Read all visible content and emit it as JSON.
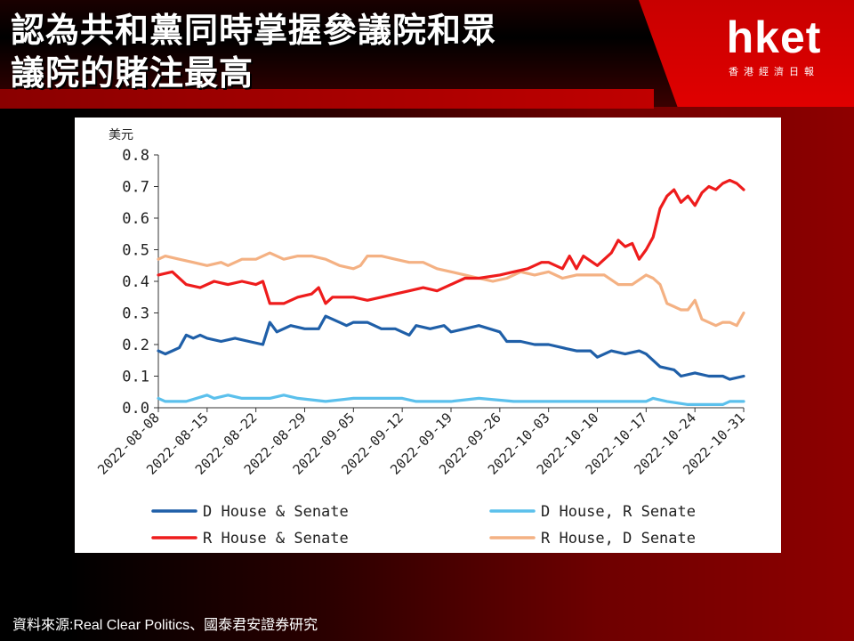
{
  "headline": {
    "line1": "認為共和黨同時掌握參議院和眾",
    "line2": "議院的賭注最高"
  },
  "brand": {
    "logo": "hket",
    "subtitle": "香港經濟日報"
  },
  "source": "資料來源:Real Clear Politics、國泰君安證券研究",
  "colors": {
    "d_both": "#1f5fa8",
    "d_house_r_senate": "#5bc0ec",
    "r_both": "#ee1c1c",
    "r_house_d_senate": "#f4b183",
    "header_red": "#e00000"
  },
  "chart_data": {
    "type": "line",
    "unit_label": "美元",
    "ylim": [
      0.0,
      0.8
    ],
    "yticks": [
      "0.0",
      "0.1",
      "0.2",
      "0.3",
      "0.4",
      "0.5",
      "0.6",
      "0.7",
      "0.8"
    ],
    "xtick_labels": [
      "2022-08-08",
      "2022-08-15",
      "2022-08-22",
      "2022-08-29",
      "2022-09-05",
      "2022-09-12",
      "2022-09-19",
      "2022-09-26",
      "2022-10-03",
      "2022-10-10",
      "2022-10-17",
      "2022-10-24",
      "2022-10-31"
    ],
    "grid": false,
    "legend_position": "bottom",
    "series": [
      {
        "name": "D House & Senate",
        "color": "#1f5fa8",
        "values": [
          [
            "2022-08-08",
            0.18
          ],
          [
            "2022-08-09",
            0.17
          ],
          [
            "2022-08-10",
            0.18
          ],
          [
            "2022-08-11",
            0.19
          ],
          [
            "2022-08-12",
            0.23
          ],
          [
            "2022-08-13",
            0.22
          ],
          [
            "2022-08-14",
            0.23
          ],
          [
            "2022-08-15",
            0.22
          ],
          [
            "2022-08-17",
            0.21
          ],
          [
            "2022-08-19",
            0.22
          ],
          [
            "2022-08-21",
            0.21
          ],
          [
            "2022-08-23",
            0.2
          ],
          [
            "2022-08-24",
            0.27
          ],
          [
            "2022-08-25",
            0.24
          ],
          [
            "2022-08-27",
            0.26
          ],
          [
            "2022-08-29",
            0.25
          ],
          [
            "2022-08-31",
            0.25
          ],
          [
            "2022-09-01",
            0.29
          ],
          [
            "2022-09-03",
            0.27
          ],
          [
            "2022-09-04",
            0.26
          ],
          [
            "2022-09-05",
            0.27
          ],
          [
            "2022-09-07",
            0.27
          ],
          [
            "2022-09-09",
            0.25
          ],
          [
            "2022-09-11",
            0.25
          ],
          [
            "2022-09-13",
            0.23
          ],
          [
            "2022-09-14",
            0.26
          ],
          [
            "2022-09-16",
            0.25
          ],
          [
            "2022-09-18",
            0.26
          ],
          [
            "2022-09-19",
            0.24
          ],
          [
            "2022-09-21",
            0.25
          ],
          [
            "2022-09-23",
            0.26
          ],
          [
            "2022-09-26",
            0.24
          ],
          [
            "2022-09-27",
            0.21
          ],
          [
            "2022-09-29",
            0.21
          ],
          [
            "2022-10-01",
            0.2
          ],
          [
            "2022-10-03",
            0.2
          ],
          [
            "2022-10-05",
            0.19
          ],
          [
            "2022-10-07",
            0.18
          ],
          [
            "2022-10-09",
            0.18
          ],
          [
            "2022-10-10",
            0.16
          ],
          [
            "2022-10-12",
            0.18
          ],
          [
            "2022-10-14",
            0.17
          ],
          [
            "2022-10-16",
            0.18
          ],
          [
            "2022-10-17",
            0.17
          ],
          [
            "2022-10-19",
            0.13
          ],
          [
            "2022-10-21",
            0.12
          ],
          [
            "2022-10-22",
            0.1
          ],
          [
            "2022-10-24",
            0.11
          ],
          [
            "2022-10-26",
            0.1
          ],
          [
            "2022-10-28",
            0.1
          ],
          [
            "2022-10-29",
            0.09
          ],
          [
            "2022-10-31",
            0.1
          ]
        ]
      },
      {
        "name": "D House, R Senate",
        "color": "#5bc0ec",
        "values": [
          [
            "2022-08-08",
            0.03
          ],
          [
            "2022-08-09",
            0.02
          ],
          [
            "2022-08-12",
            0.02
          ],
          [
            "2022-08-15",
            0.04
          ],
          [
            "2022-08-16",
            0.03
          ],
          [
            "2022-08-18",
            0.04
          ],
          [
            "2022-08-20",
            0.03
          ],
          [
            "2022-08-24",
            0.03
          ],
          [
            "2022-08-26",
            0.04
          ],
          [
            "2022-08-28",
            0.03
          ],
          [
            "2022-09-01",
            0.02
          ],
          [
            "2022-09-05",
            0.03
          ],
          [
            "2022-09-12",
            0.03
          ],
          [
            "2022-09-14",
            0.02
          ],
          [
            "2022-09-19",
            0.02
          ],
          [
            "2022-09-23",
            0.03
          ],
          [
            "2022-09-28",
            0.02
          ],
          [
            "2022-10-03",
            0.02
          ],
          [
            "2022-10-10",
            0.02
          ],
          [
            "2022-10-17",
            0.02
          ],
          [
            "2022-10-18",
            0.03
          ],
          [
            "2022-10-20",
            0.02
          ],
          [
            "2022-10-23",
            0.01
          ],
          [
            "2022-10-28",
            0.01
          ],
          [
            "2022-10-29",
            0.02
          ],
          [
            "2022-10-31",
            0.02
          ]
        ]
      },
      {
        "name": "R House & Senate",
        "color": "#ee1c1c",
        "values": [
          [
            "2022-08-08",
            0.42
          ],
          [
            "2022-08-10",
            0.43
          ],
          [
            "2022-08-12",
            0.39
          ],
          [
            "2022-08-14",
            0.38
          ],
          [
            "2022-08-16",
            0.4
          ],
          [
            "2022-08-18",
            0.39
          ],
          [
            "2022-08-20",
            0.4
          ],
          [
            "2022-08-22",
            0.39
          ],
          [
            "2022-08-23",
            0.4
          ],
          [
            "2022-08-24",
            0.33
          ],
          [
            "2022-08-26",
            0.33
          ],
          [
            "2022-08-28",
            0.35
          ],
          [
            "2022-08-30",
            0.36
          ],
          [
            "2022-08-31",
            0.38
          ],
          [
            "2022-09-01",
            0.33
          ],
          [
            "2022-09-02",
            0.35
          ],
          [
            "2022-09-05",
            0.35
          ],
          [
            "2022-09-07",
            0.34
          ],
          [
            "2022-09-09",
            0.35
          ],
          [
            "2022-09-11",
            0.36
          ],
          [
            "2022-09-13",
            0.37
          ],
          [
            "2022-09-15",
            0.38
          ],
          [
            "2022-09-17",
            0.37
          ],
          [
            "2022-09-19",
            0.39
          ],
          [
            "2022-09-21",
            0.41
          ],
          [
            "2022-09-23",
            0.41
          ],
          [
            "2022-09-26",
            0.42
          ],
          [
            "2022-09-28",
            0.43
          ],
          [
            "2022-09-30",
            0.44
          ],
          [
            "2022-10-02",
            0.46
          ],
          [
            "2022-10-03",
            0.46
          ],
          [
            "2022-10-05",
            0.44
          ],
          [
            "2022-10-06",
            0.48
          ],
          [
            "2022-10-07",
            0.44
          ],
          [
            "2022-10-08",
            0.48
          ],
          [
            "2022-10-10",
            0.45
          ],
          [
            "2022-10-12",
            0.49
          ],
          [
            "2022-10-13",
            0.53
          ],
          [
            "2022-10-14",
            0.51
          ],
          [
            "2022-10-15",
            0.52
          ],
          [
            "2022-10-16",
            0.47
          ],
          [
            "2022-10-17",
            0.5
          ],
          [
            "2022-10-18",
            0.54
          ],
          [
            "2022-10-19",
            0.63
          ],
          [
            "2022-10-20",
            0.67
          ],
          [
            "2022-10-21",
            0.69
          ],
          [
            "2022-10-22",
            0.65
          ],
          [
            "2022-10-23",
            0.67
          ],
          [
            "2022-10-24",
            0.64
          ],
          [
            "2022-10-25",
            0.68
          ],
          [
            "2022-10-26",
            0.7
          ],
          [
            "2022-10-27",
            0.69
          ],
          [
            "2022-10-28",
            0.71
          ],
          [
            "2022-10-29",
            0.72
          ],
          [
            "2022-10-30",
            0.71
          ],
          [
            "2022-10-31",
            0.69
          ]
        ]
      },
      {
        "name": "R House, D Senate",
        "color": "#f4b183",
        "values": [
          [
            "2022-08-08",
            0.47
          ],
          [
            "2022-08-09",
            0.48
          ],
          [
            "2022-08-11",
            0.47
          ],
          [
            "2022-08-13",
            0.46
          ],
          [
            "2022-08-15",
            0.45
          ],
          [
            "2022-08-17",
            0.46
          ],
          [
            "2022-08-18",
            0.45
          ],
          [
            "2022-08-20",
            0.47
          ],
          [
            "2022-08-22",
            0.47
          ],
          [
            "2022-08-24",
            0.49
          ],
          [
            "2022-08-26",
            0.47
          ],
          [
            "2022-08-28",
            0.48
          ],
          [
            "2022-08-30",
            0.48
          ],
          [
            "2022-09-01",
            0.47
          ],
          [
            "2022-09-03",
            0.45
          ],
          [
            "2022-09-05",
            0.44
          ],
          [
            "2022-09-06",
            0.45
          ],
          [
            "2022-09-07",
            0.48
          ],
          [
            "2022-09-09",
            0.48
          ],
          [
            "2022-09-11",
            0.47
          ],
          [
            "2022-09-13",
            0.46
          ],
          [
            "2022-09-15",
            0.46
          ],
          [
            "2022-09-17",
            0.44
          ],
          [
            "2022-09-19",
            0.43
          ],
          [
            "2022-09-21",
            0.42
          ],
          [
            "2022-09-23",
            0.41
          ],
          [
            "2022-09-25",
            0.4
          ],
          [
            "2022-09-27",
            0.41
          ],
          [
            "2022-09-29",
            0.43
          ],
          [
            "2022-10-01",
            0.42
          ],
          [
            "2022-10-03",
            0.43
          ],
          [
            "2022-10-05",
            0.41
          ],
          [
            "2022-10-07",
            0.42
          ],
          [
            "2022-10-09",
            0.42
          ],
          [
            "2022-10-11",
            0.42
          ],
          [
            "2022-10-13",
            0.39
          ],
          [
            "2022-10-15",
            0.39
          ],
          [
            "2022-10-17",
            0.42
          ],
          [
            "2022-10-18",
            0.41
          ],
          [
            "2022-10-19",
            0.39
          ],
          [
            "2022-10-20",
            0.33
          ],
          [
            "2022-10-21",
            0.32
          ],
          [
            "2022-10-22",
            0.31
          ],
          [
            "2022-10-23",
            0.31
          ],
          [
            "2022-10-24",
            0.34
          ],
          [
            "2022-10-25",
            0.28
          ],
          [
            "2022-10-26",
            0.27
          ],
          [
            "2022-10-27",
            0.26
          ],
          [
            "2022-10-28",
            0.27
          ],
          [
            "2022-10-29",
            0.27
          ],
          [
            "2022-10-30",
            0.26
          ],
          [
            "2022-10-31",
            0.3
          ]
        ]
      }
    ]
  }
}
